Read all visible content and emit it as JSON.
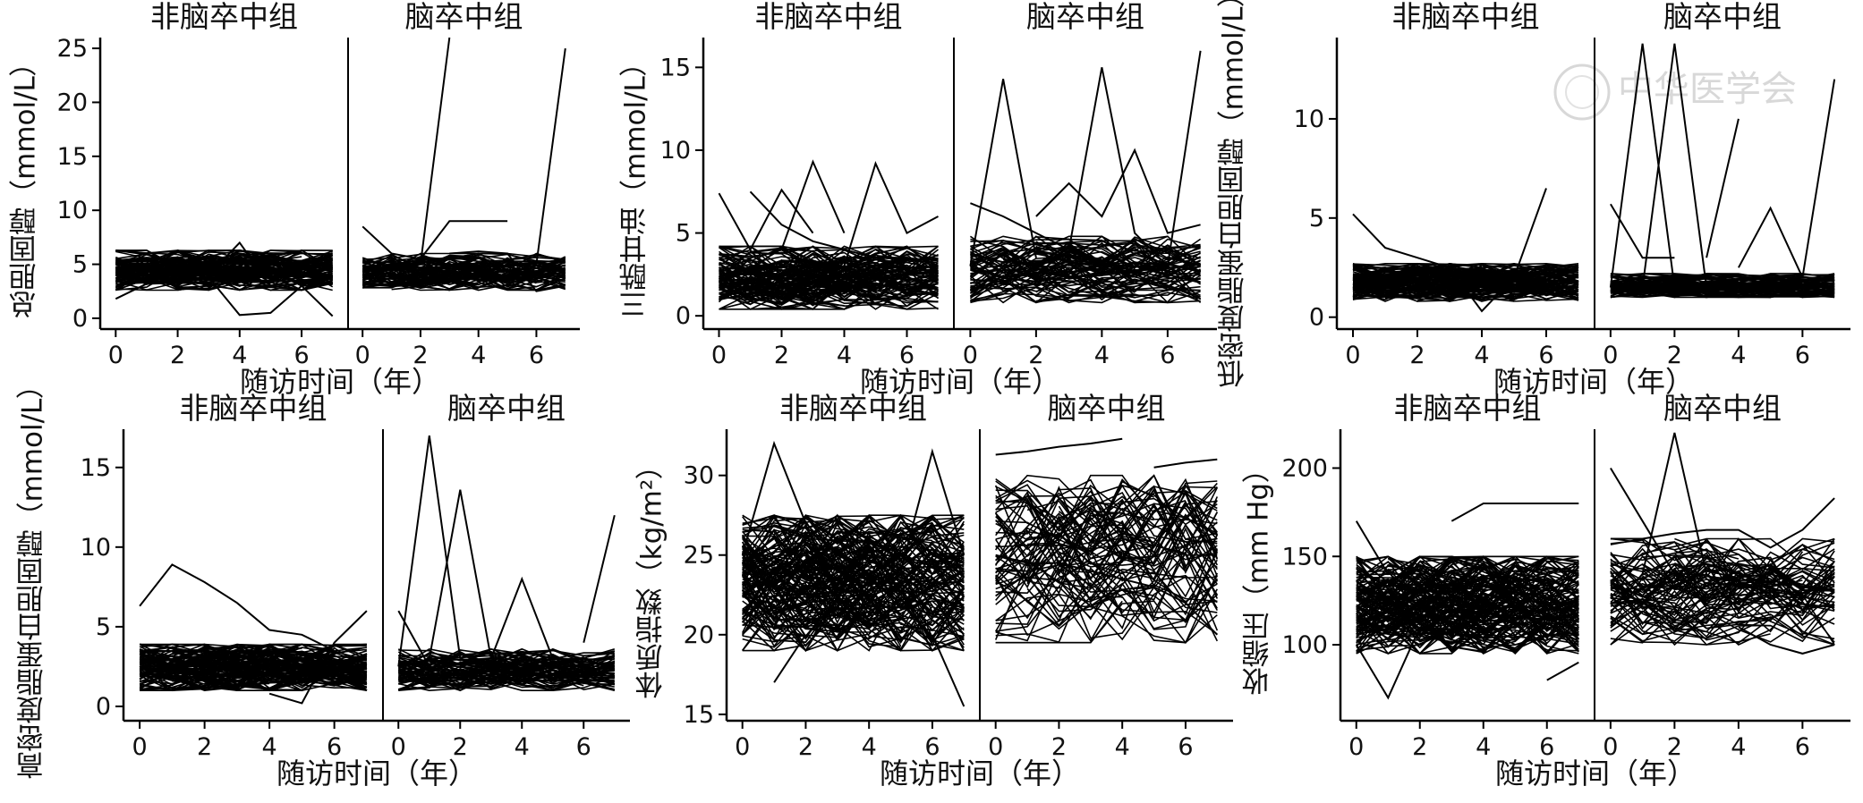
{
  "figure": {
    "watermark": "中华医学会"
  },
  "chart_data": [
    {
      "type": "line",
      "ylabel": "总胆固醇（mmol/L）",
      "xlabel": "随访时间（年）",
      "ylim": [
        -1,
        26
      ],
      "yticks": [
        0,
        5,
        10,
        15,
        20,
        25
      ],
      "xlim": [
        -0.5,
        7.5
      ],
      "xticks": [
        0,
        2,
        4,
        6
      ],
      "groups": [
        {
          "name": "非脑卒中组",
          "trajectories": 120,
          "band": [
            2.6,
            6.3
          ],
          "spikes": [
            [
              0,
              1.8,
              1,
              3.2,
              2,
              3.5,
              3,
              3.8,
              4,
              0.3,
              5,
              0.5,
              6,
              3.0,
              7,
              0.2
            ],
            [
              2,
              4.0,
              3,
              4.0,
              4,
              7.0,
              5,
              3.0
            ]
          ]
        },
        {
          "name": "脑卒中组",
          "trajectories": 80,
          "band": [
            2.6,
            6.0
          ],
          "spikes": [
            [
              0,
              8.5,
              1,
              6.0,
              2,
              5.5,
              3,
              9.0,
              4,
              9.0,
              5,
              9.0
            ],
            [
              1,
              4.5,
              2,
              5.0,
              3,
              26.0
            ],
            [
              5,
              4.0,
              6,
              5.0,
              7,
              25.0
            ],
            [
              3,
              6.0,
              4,
              6.2,
              5,
              6.0,
              6,
              2.5,
              7,
              3.0
            ]
          ]
        }
      ]
    },
    {
      "type": "line",
      "ylabel": "三酰甘油（mmol/L）",
      "xlabel": "随访时间（年）",
      "ylim": [
        -0.8,
        16.8
      ],
      "yticks": [
        0,
        5,
        10,
        15
      ],
      "xlim": [
        -0.5,
        7.5
      ],
      "xticks": [
        0,
        2,
        4,
        6
      ],
      "groups": [
        {
          "name": "非脑卒中组",
          "trajectories": 120,
          "band": [
            0.4,
            4.2
          ],
          "spikes": [
            [
              0,
              7.4,
              1,
              4.0,
              2,
              7.6,
              3,
              5.0
            ],
            [
              2,
              4.0,
              3,
              9.3,
              4,
              5.0
            ],
            [
              4,
              3.0,
              5,
              9.2,
              6,
              5.0,
              7,
              6.0
            ],
            [
              1,
              7.5,
              2,
              5.5,
              3,
              4.5,
              4,
              4.0,
              5,
              3.5,
              6,
              3.0
            ]
          ]
        },
        {
          "name": "脑卒中组",
          "trajectories": 80,
          "band": [
            0.8,
            4.8
          ],
          "spikes": [
            [
              0,
              3.0,
              1,
              14.3,
              2,
              3.5
            ],
            [
              0,
              6.8,
              1,
              6.0,
              2,
              5.0,
              3,
              4.0,
              4,
              3.0,
              5,
              3.0,
              6,
              2.5,
              7,
              2.0
            ],
            [
              3,
              4.0,
              4,
              15.0,
              5,
              5.0,
              6,
              3.0
            ],
            [
              5,
              4.0,
              6,
              3.0,
              7,
              16.0
            ],
            [
              2,
              6.0,
              3,
              8.0,
              4,
              6.0,
              5,
              10.0,
              6,
              5.0,
              7,
              5.5
            ]
          ]
        }
      ]
    },
    {
      "type": "line",
      "ylabel": "低密度脂蛋白胆固醇（mmol/L）",
      "xlabel": "随访时间（年）",
      "ylim": [
        -0.6,
        14.1
      ],
      "yticks": [
        0,
        5,
        10
      ],
      "xlim": [
        -0.5,
        7.5
      ],
      "xticks": [
        0,
        2,
        4,
        6
      ],
      "groups": [
        {
          "name": "非脑卒中组",
          "trajectories": 120,
          "band": [
            0.8,
            2.7
          ],
          "spikes": [
            [
              0,
              5.2,
              1,
              3.5,
              2,
              3.0,
              3,
              2.5,
              4,
              0.3,
              5,
              2.0,
              6,
              6.5
            ]
          ]
        },
        {
          "name": "脑卒中组",
          "trajectories": 80,
          "band": [
            1.0,
            2.2
          ],
          "spikes": [
            [
              0,
              5.7,
              1,
              3.0,
              2,
              3.0
            ],
            [
              0,
              1.5,
              1,
              13.8,
              2,
              1.5
            ],
            [
              1,
              1.5,
              2,
              13.8,
              3,
              1.5
            ],
            [
              3,
              3.0,
              4,
              10.0
            ],
            [
              4,
              2.5,
              5,
              5.5,
              6,
              2.0
            ],
            [
              6,
              2.0,
              7,
              12.0
            ]
          ]
        }
      ]
    },
    {
      "type": "line",
      "ylabel": "高密度脂蛋白胆固醇（mmol/L）",
      "xlabel": "随访时间（年）",
      "ylim": [
        -0.9,
        17.4
      ],
      "yticks": [
        0,
        5,
        10,
        15
      ],
      "xlim": [
        -0.5,
        7.5
      ],
      "xticks": [
        0,
        2,
        4,
        6
      ],
      "groups": [
        {
          "name": "非脑卒中组",
          "trajectories": 120,
          "band": [
            1.0,
            3.9
          ],
          "spikes": [
            [
              0,
              6.3,
              1,
              8.9,
              2,
              7.8,
              3,
              6.5,
              4,
              4.8,
              5,
              4.5,
              6,
              3.5
            ],
            [
              4,
              0.8,
              5,
              0.2,
              6,
              4.0,
              7,
              6.0
            ]
          ]
        },
        {
          "name": "脑卒中组",
          "trajectories": 80,
          "band": [
            1.0,
            3.6
          ],
          "spikes": [
            [
              0,
              2.5,
              1,
              17.0,
              2,
              3.0
            ],
            [
              1,
              3.0,
              2,
              13.6,
              3,
              3.0
            ],
            [
              0,
              6.0,
              1,
              2.5
            ],
            [
              3,
              3.0,
              4,
              8.0,
              5,
              3.0
            ],
            [
              6,
              4.0,
              7,
              12.0
            ]
          ]
        }
      ]
    },
    {
      "type": "line",
      "ylabel": "体质指数（kg/m²）",
      "xlabel": "随访时间（年）",
      "ylim": [
        14.6,
        32.9
      ],
      "yticks": [
        15,
        20,
        25,
        30
      ],
      "xlim": [
        -0.5,
        7.5
      ],
      "xticks": [
        0,
        2,
        4,
        6
      ],
      "groups": [
        {
          "name": "非脑卒中组",
          "trajectories": 160,
          "band": [
            19.0,
            27.5
          ],
          "spikes": [
            [
              0,
              25.0,
              1,
              32.0,
              2,
              27.0
            ],
            [
              5,
              24.0,
              6,
              31.5,
              7,
              25.0
            ],
            [
              6,
              20.0,
              7,
              15.5
            ],
            [
              1,
              17.0,
              2,
              20.0
            ]
          ]
        },
        {
          "name": "脑卒中组",
          "trajectories": 80,
          "band": [
            19.5,
            30.0
          ],
          "spikes": [
            [
              0,
              31.3,
              1,
              31.5,
              2,
              31.8,
              3,
              32.0,
              4,
              32.3
            ],
            [
              5,
              30.5,
              6,
              30.8,
              7,
              31.0
            ],
            [
              0,
              25.0,
              1,
              24.5,
              2,
              24.5,
              3,
              24.0,
              4,
              23.5,
              5,
              23.0,
              6,
              22.0,
              7,
              20.0
            ]
          ]
        }
      ]
    },
    {
      "type": "line",
      "ylabel": "收缩压（mm Hg）",
      "xlabel": "随访时间（年）",
      "ylim": [
        57,
        222
      ],
      "yticks": [
        100,
        150,
        200
      ],
      "xlim": [
        -0.5,
        7.5
      ],
      "xticks": [
        0,
        2,
        4,
        6
      ],
      "groups": [
        {
          "name": "非脑卒中组",
          "trajectories": 160,
          "band": [
            95,
            150
          ],
          "spikes": [
            [
              0,
              170,
              1,
              140,
              2,
              150
            ],
            [
              3,
              170,
              4,
              180,
              5,
              180,
              6,
              180,
              7,
              180
            ],
            [
              0,
              100,
              1,
              70,
              2,
              110
            ],
            [
              6,
              80,
              7,
              90
            ]
          ]
        },
        {
          "name": "脑卒中组",
          "trajectories": 80,
          "band": [
            100,
            160
          ],
          "spikes": [
            [
              1,
              140,
              2,
              220,
              3,
              140
            ],
            [
              0,
              200,
              1,
              170,
              2,
              140
            ],
            [
              0,
              160,
              1,
              160,
              2,
              163,
              3,
              165,
              4,
              165,
              5,
              155,
              6,
              165,
              7,
              183
            ],
            [
              4,
              110,
              5,
              100,
              6,
              95,
              7,
              100
            ]
          ]
        }
      ]
    }
  ]
}
